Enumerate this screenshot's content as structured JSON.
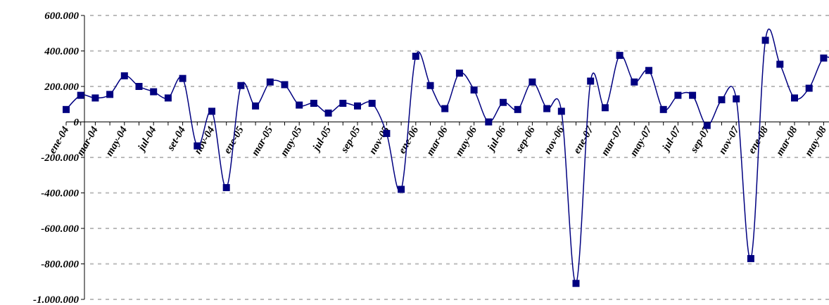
{
  "chart_data": {
    "type": "line",
    "categories": [
      "ene-04",
      null,
      "mar-04",
      null,
      "may-04",
      null,
      "jul-04",
      null,
      "set-04",
      null,
      "nov-04",
      null,
      "ene-05",
      null,
      "mar-05",
      null,
      "may-05",
      null,
      "jul-05",
      null,
      "sep-05",
      null,
      "nov-05",
      null,
      "ene-06",
      null,
      "mar-06",
      null,
      "may-06",
      null,
      "jul-06",
      null,
      "sep-06",
      null,
      "nov-06",
      null,
      "ene-07",
      null,
      "mar-07",
      null,
      "may-07",
      null,
      "jul-07",
      null,
      "sep-07",
      null,
      "nov-07",
      null,
      "ene-08",
      null,
      "mar-08",
      null,
      "may-08",
      null
    ],
    "series": [
      {
        "color": "#000080",
        "values": [
          70000,
          150000,
          135000,
          155000,
          260000,
          200000,
          170000,
          135000,
          245000,
          -135000,
          60000,
          -370000,
          205000,
          90000,
          225000,
          210000,
          95000,
          105000,
          50000,
          105000,
          90000,
          105000,
          -65000,
          -380000,
          370000,
          205000,
          75000,
          275000,
          180000,
          0,
          110000,
          70000,
          225000,
          75000,
          60000,
          -910000,
          230000,
          80000,
          375000,
          225000,
          290000,
          70000,
          150000,
          150000,
          -20000,
          125000,
          130000,
          -770000,
          460000,
          325000,
          135000,
          190000,
          360000,
          330000
        ]
      }
    ],
    "ylim": [
      -1000000,
      600000
    ],
    "yticks": [
      {
        "value": -1000000,
        "label": "-1.000.000"
      },
      {
        "value": -800000,
        "label": "-800.000"
      },
      {
        "value": -600000,
        "label": "-600.000"
      },
      {
        "value": -400000,
        "label": "-400.000"
      },
      {
        "value": -200000,
        "label": "-200.000"
      },
      0,
      {
        "value": 200000,
        "label": "200.000"
      },
      {
        "value": 400000,
        "label": "400.000"
      },
      {
        "value": 600000,
        "label": "600.000"
      }
    ],
    "grid": true
  }
}
